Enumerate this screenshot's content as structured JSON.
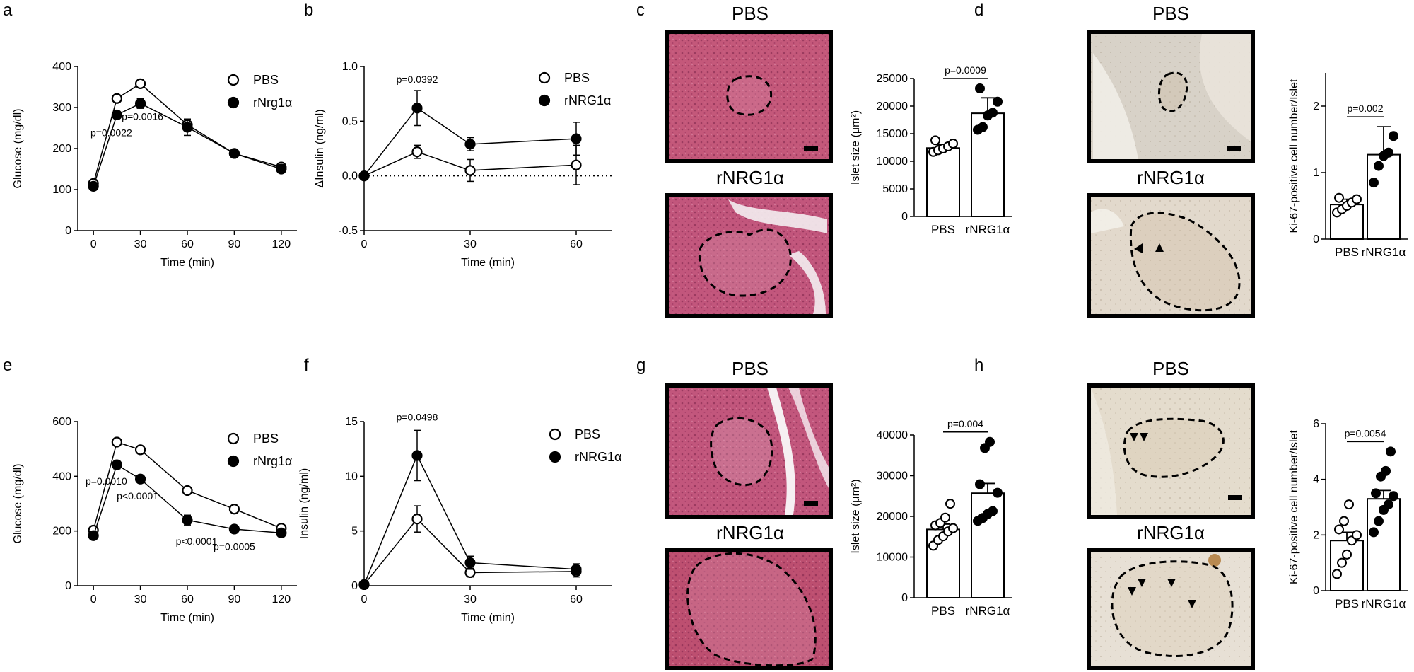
{
  "figure": {
    "panel_letters": [
      "a",
      "b",
      "c",
      "d",
      "e",
      "f",
      "g",
      "h"
    ]
  },
  "micrographs": {
    "c": {
      "top_label": "PBS",
      "bottom_label": "rNRG1α",
      "stain": "H&E",
      "tint_top": "#c4587a",
      "tint_bottom": "#c2567c"
    },
    "d": {
      "top_label": "PBS",
      "bottom_label": "rNRG1α",
      "stain": "Ki-67 IHC",
      "tint_top": "#d8d2c8",
      "tint_bottom": "#e2d9cc"
    },
    "g": {
      "top_label": "PBS",
      "bottom_label": "rNRG1α",
      "stain": "H&E",
      "tint_top": "#c2567c",
      "tint_bottom": "#bd4f70"
    },
    "h": {
      "top_label": "PBS",
      "bottom_label": "rNRG1α",
      "stain": "Ki-67 IHC",
      "tint_top": "#e4dccd",
      "tint_bottom": "#e7e0d5"
    }
  },
  "chart_data": [
    {
      "panel": "a",
      "type": "line",
      "xlabel": "Time (min)",
      "ylabel": "Glucose (mg/dl)",
      "xlim": [
        -10,
        130
      ],
      "ylim": [
        0,
        400
      ],
      "xticks": [
        0,
        30,
        60,
        90,
        120
      ],
      "yticks": [
        0,
        100,
        200,
        300,
        400
      ],
      "legend_position": "top-right",
      "series": [
        {
          "name": "PBS",
          "marker": "open-circle",
          "x": [
            0,
            15,
            30,
            60,
            90,
            120
          ],
          "y": [
            115,
            322,
            358,
            258,
            188,
            155
          ],
          "err": [
            5,
            8,
            8,
            12,
            6,
            6
          ]
        },
        {
          "name": "rNrg1α",
          "marker": "filled-circle",
          "x": [
            0,
            15,
            30,
            60,
            90,
            120
          ],
          "y": [
            108,
            282,
            310,
            252,
            188,
            150
          ],
          "err": [
            5,
            8,
            12,
            20,
            6,
            6
          ]
        }
      ],
      "annotations": [
        {
          "text": "p=0.0022",
          "x": 15,
          "y": 230
        },
        {
          "text": "p=0.0016",
          "x": 30,
          "y": 270
        }
      ]
    },
    {
      "panel": "b",
      "type": "line",
      "xlabel": "Time (min)",
      "ylabel": "ΔInsulin (ng/ml)",
      "xlim": [
        0,
        70
      ],
      "ylim": [
        -0.5,
        1.0
      ],
      "xticks": [
        0,
        30,
        60
      ],
      "yticks": [
        -0.5,
        0.0,
        0.5,
        1.0
      ],
      "ytick_labels": [
        "-0.5",
        "0.0",
        "0.5",
        "1.0"
      ],
      "zero_line": "dotted",
      "legend_position": "top-right",
      "series": [
        {
          "name": "PBS",
          "marker": "open-circle",
          "x": [
            0,
            15,
            30,
            60
          ],
          "y": [
            0,
            0.22,
            0.05,
            0.1
          ],
          "err": [
            0,
            0.06,
            0.1,
            0.18
          ]
        },
        {
          "name": "rNRG1α",
          "marker": "filled-circle",
          "x": [
            0,
            15,
            30,
            60
          ],
          "y": [
            0,
            0.62,
            0.29,
            0.34
          ],
          "err": [
            0,
            0.16,
            0.06,
            0.15
          ]
        }
      ],
      "annotations": [
        {
          "text": "p=0.0392",
          "x": 15,
          "y": 0.85
        }
      ]
    },
    {
      "panel": "c",
      "type": "bar",
      "ylabel": "Islet size (μm²)",
      "ylim": [
        0,
        25000
      ],
      "yticks": [
        0,
        5000,
        10000,
        15000,
        20000,
        25000
      ],
      "categories": [
        "PBS",
        "rNRG1α"
      ],
      "values": [
        12400,
        18700
      ],
      "err": [
        600,
        2800
      ],
      "points": [
        [
          11700,
          12000,
          12300,
          12700,
          13200,
          13800
        ],
        [
          15700,
          16200,
          18300,
          18800,
          20800,
          23200
        ]
      ],
      "point_marker": [
        "open-circle",
        "filled-circle"
      ],
      "comparison": {
        "text": "p=0.0009"
      }
    },
    {
      "panel": "d",
      "type": "bar",
      "ylabel": "Ki-67-positive cell number/Islet",
      "ylim": [
        0,
        2.5
      ],
      "yticks": [
        0,
        1,
        2
      ],
      "categories": [
        "PBS",
        "rNRG1α"
      ],
      "values": [
        0.52,
        1.27
      ],
      "err": [
        0.08,
        0.42
      ],
      "points": [
        [
          0.4,
          0.45,
          0.5,
          0.55,
          0.6,
          0.62
        ],
        [
          0.85,
          1.1,
          1.25,
          1.3,
          1.55
        ]
      ],
      "point_marker": [
        "open-circle",
        "filled-circle"
      ],
      "comparison": {
        "text": "p=0.002"
      }
    },
    {
      "panel": "e",
      "type": "line",
      "xlabel": "Time (min)",
      "ylabel": "Glucose (mg/dl)",
      "xlim": [
        -10,
        130
      ],
      "ylim": [
        0,
        600
      ],
      "xticks": [
        0,
        30,
        60,
        90,
        120
      ],
      "yticks": [
        0,
        200,
        400,
        600
      ],
      "legend_position": "top-right",
      "series": [
        {
          "name": "PBS",
          "marker": "open-circle",
          "x": [
            0,
            15,
            30,
            60,
            90,
            120
          ],
          "y": [
            203,
            525,
            497,
            348,
            280,
            210
          ],
          "err": [
            6,
            8,
            8,
            8,
            8,
            6
          ]
        },
        {
          "name": "rNrg1α",
          "marker": "filled-circle",
          "x": [
            0,
            15,
            30,
            60,
            90,
            120
          ],
          "y": [
            183,
            442,
            390,
            240,
            207,
            193
          ],
          "err": [
            6,
            15,
            8,
            18,
            8,
            6
          ]
        }
      ],
      "annotations": [
        {
          "text": "p=0.0010",
          "x": 15,
          "y": 370
        },
        {
          "text": "p<0.0001",
          "x": 30,
          "y": 315
        },
        {
          "text": "p<0.0001",
          "x": 60,
          "y": 150
        },
        {
          "text": "p=0.0005",
          "x": 90,
          "y": 130
        }
      ]
    },
    {
      "panel": "f",
      "type": "line",
      "xlabel": "Time (min)",
      "ylabel": "Insulin (ng/ml)",
      "xlim": [
        0,
        70
      ],
      "ylim": [
        0,
        15
      ],
      "xticks": [
        0,
        30,
        60
      ],
      "yticks": [
        0,
        5,
        10,
        15
      ],
      "legend_position": "top-right",
      "series": [
        {
          "name": "PBS",
          "marker": "open-circle",
          "x": [
            0,
            15,
            30,
            60
          ],
          "y": [
            0.1,
            6.1,
            1.2,
            1.3
          ],
          "err": [
            0,
            1.2,
            0.4,
            0.5
          ]
        },
        {
          "name": "rNRG1α",
          "marker": "filled-circle",
          "x": [
            0,
            15,
            30,
            60
          ],
          "y": [
            0.1,
            11.9,
            2.1,
            1.5
          ],
          "err": [
            0,
            2.3,
            0.6,
            0.5
          ]
        }
      ],
      "annotations": [
        {
          "text": "p=0.0498",
          "x": 15,
          "y": 15.1
        }
      ]
    },
    {
      "panel": "g",
      "type": "bar",
      "ylabel": "Islet size (μm²)",
      "ylim": [
        0,
        40000
      ],
      "yticks": [
        0,
        10000,
        20000,
        30000,
        40000
      ],
      "categories": [
        "PBS",
        "rNRG1α"
      ],
      "values": [
        16800,
        25700
      ],
      "err": [
        1300,
        2400
      ],
      "points": [
        [
          12800,
          14200,
          15100,
          16300,
          17100,
          17800,
          18400,
          19700,
          23100
        ],
        [
          18900,
          19600,
          20600,
          21300,
          25800,
          27900,
          36800,
          38300
        ]
      ],
      "point_marker": [
        "open-circle",
        "filled-circle"
      ],
      "comparison": {
        "text": "p=0.004"
      }
    },
    {
      "panel": "h",
      "type": "bar",
      "ylabel": "Ki-67-positive cell number/Islet",
      "ylim": [
        0,
        6
      ],
      "yticks": [
        0,
        2,
        4,
        6
      ],
      "categories": [
        "PBS",
        "rNRG1α"
      ],
      "values": [
        1.8,
        3.3
      ],
      "err": [
        0.3,
        0.3
      ],
      "points": [
        [
          0.6,
          1.0,
          1.3,
          1.8,
          2.0,
          2.2,
          2.5,
          3.1
        ],
        [
          2.1,
          2.5,
          2.9,
          3.1,
          3.4,
          3.5,
          4.1,
          4.3,
          5.0
        ]
      ],
      "point_marker": [
        "open-circle",
        "filled-circle"
      ],
      "comparison": {
        "text": "p=0.0054"
      }
    }
  ]
}
